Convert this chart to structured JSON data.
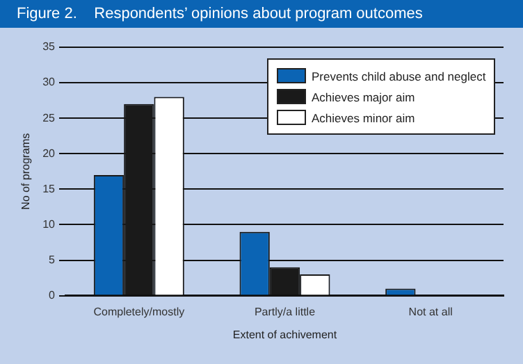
{
  "chart_data": {
    "type": "bar",
    "title": "Figure 2.    Respondents’ opinions about program outcomes",
    "xlabel": "Extent of achivement",
    "ylabel": "No of programs",
    "categories": [
      "Completely/mostly",
      "Partly/a little",
      "Not at all"
    ],
    "series": [
      {
        "name": "Prevents child abuse and neglect",
        "color": "#0b64b4",
        "values": [
          17,
          9,
          1
        ]
      },
      {
        "name": "Achieves major aim",
        "color": "#1a1a1a",
        "values": [
          27,
          4,
          0
        ]
      },
      {
        "name": "Achieves minor aim",
        "color": "#ffffff",
        "values": [
          28,
          3,
          0
        ]
      }
    ],
    "ylim": [
      0,
      35
    ],
    "yticks": [
      0,
      5,
      10,
      15,
      20,
      25,
      30,
      35
    ],
    "grid": "y",
    "legend": "top right"
  }
}
